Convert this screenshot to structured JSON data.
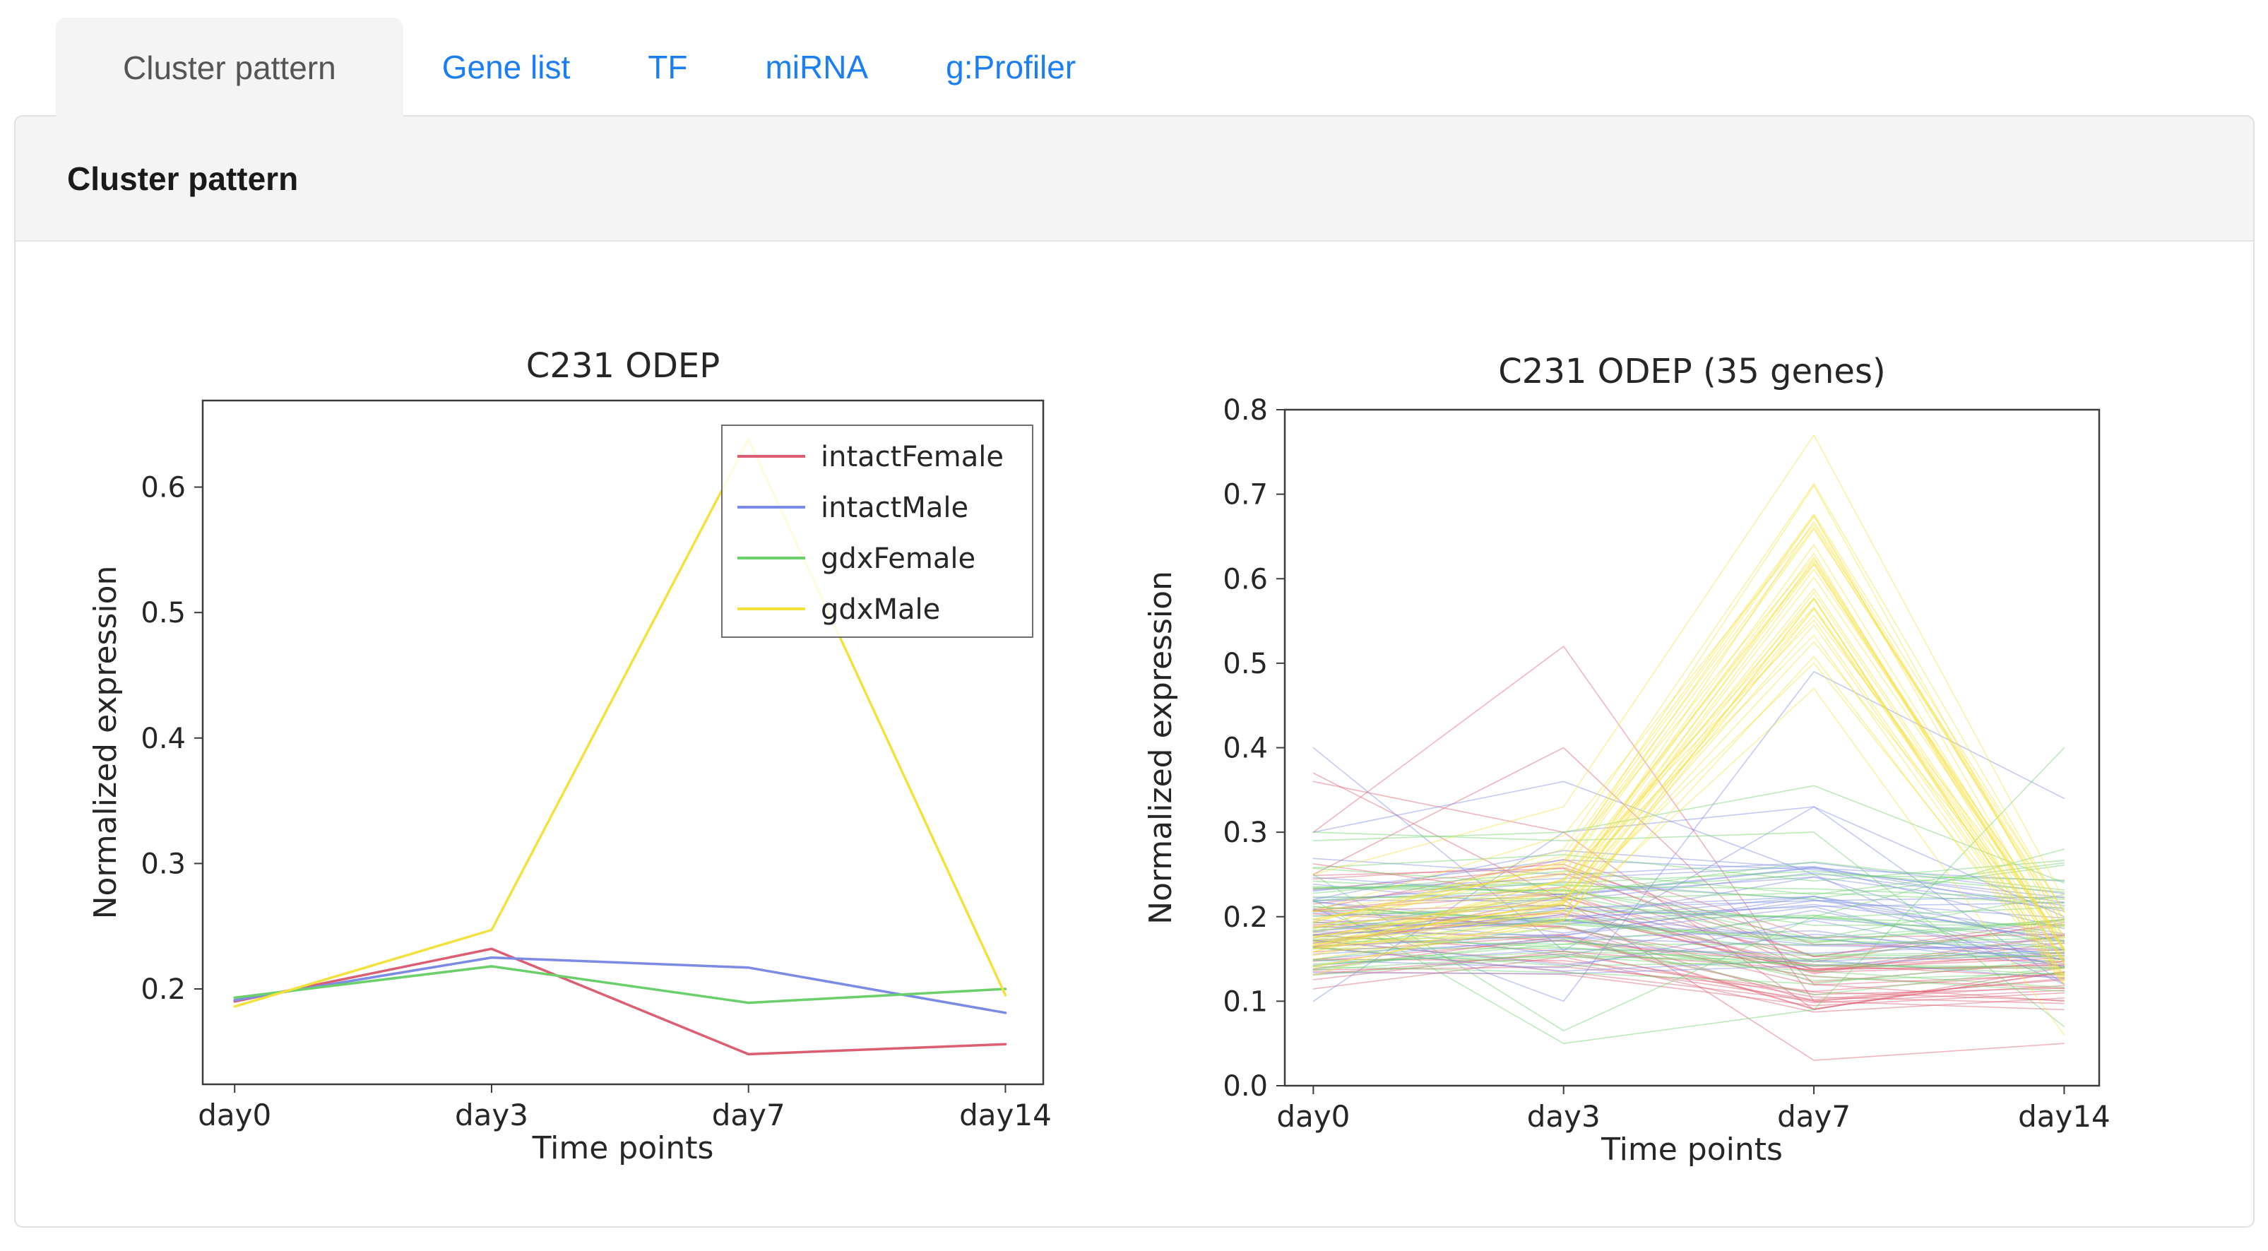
{
  "tabs": [
    {
      "label": "Cluster pattern",
      "active": true
    },
    {
      "label": "Gene list",
      "active": false
    },
    {
      "label": "TF",
      "active": false
    },
    {
      "label": "miRNA",
      "active": false
    },
    {
      "label": "g:Profiler",
      "active": false
    }
  ],
  "panel": {
    "header": "Cluster pattern"
  },
  "colors": {
    "tab_link": "#1b7ef2",
    "active_tab_text": "#555555",
    "panel_border": "#e0e0e0",
    "panel_header_bg": "#f4f4f4",
    "axis": "#3c3c3c",
    "chart_text": "#262626",
    "series_red": "#dd5e72",
    "series_blue": "#7b8ae4",
    "series_green": "#6bd06b",
    "series_yellow": "#f3e13d"
  },
  "chart_data": [
    {
      "type": "line",
      "title": "C231 ODEP",
      "xlabel": "Time points",
      "ylabel": "Normalized expression",
      "categories": [
        "day0",
        "day3",
        "day7",
        "day14"
      ],
      "ylim": [
        0.124,
        0.669
      ],
      "yticks": {
        "values": [
          0.2,
          0.3,
          0.4,
          0.5,
          0.6
        ],
        "labels": [
          "0.2",
          "0.3",
          "0.4",
          "0.5",
          "0.6"
        ]
      },
      "grid": false,
      "legend_position": "upper right",
      "line_width": 3.5,
      "series": [
        {
          "name": "intactFemale",
          "color_key": "series_red",
          "values": [
            0.19,
            0.232,
            0.148,
            0.156
          ]
        },
        {
          "name": "intactMale",
          "color_key": "series_blue",
          "values": [
            0.191,
            0.225,
            0.217,
            0.181
          ]
        },
        {
          "name": "gdxFemale",
          "color_key": "series_green",
          "values": [
            0.193,
            0.218,
            0.189,
            0.2
          ]
        },
        {
          "name": "gdxMale",
          "color_key": "series_yellow",
          "values": [
            0.186,
            0.247,
            0.638,
            0.195
          ]
        }
      ]
    },
    {
      "type": "line-spaghetti",
      "title": "C231 ODEP (35 genes)",
      "xlabel": "Time points",
      "ylabel": "Normalized expression",
      "categories": [
        "day0",
        "day3",
        "day7",
        "day14"
      ],
      "ylim": [
        0.0,
        0.8
      ],
      "yticks": {
        "values": [
          0.0,
          0.1,
          0.2,
          0.3,
          0.4,
          0.5,
          0.6,
          0.7,
          0.8
        ],
        "labels": [
          "0.0",
          "0.1",
          "0.2",
          "0.3",
          "0.4",
          "0.5",
          "0.6",
          "0.7",
          "0.8"
        ]
      },
      "grid": false,
      "alpha": 0.45,
      "line_width": 1.6,
      "seed": 11,
      "genes_per_group": 35,
      "groups": [
        {
          "name": "intactFemale",
          "color_key": "series_red",
          "n": 35,
          "mean": [
            0.19,
            0.195,
            0.13,
            0.15
          ],
          "spread": [
            0.055,
            0.07,
            0.045,
            0.05
          ],
          "clamp": [
            0.03,
            0.44
          ]
        },
        {
          "name": "intactMale",
          "color_key": "series_blue",
          "n": 35,
          "mean": [
            0.195,
            0.205,
            0.215,
            0.18
          ],
          "spread": [
            0.055,
            0.06,
            0.06,
            0.06
          ],
          "clamp": [
            0.05,
            0.42
          ]
        },
        {
          "name": "gdxFemale",
          "color_key": "series_green",
          "n": 35,
          "mean": [
            0.2,
            0.21,
            0.195,
            0.2
          ],
          "spread": [
            0.05,
            0.055,
            0.065,
            0.06
          ],
          "clamp": [
            0.04,
            0.4
          ]
        },
        {
          "name": "gdxMale",
          "color_key": "series_yellow",
          "n": 35,
          "mean": [
            0.18,
            0.24,
            0.62,
            0.17
          ],
          "spread": [
            0.035,
            0.045,
            0.1,
            0.05
          ],
          "clamp": [
            0.05,
            0.78
          ],
          "peak": {
            "index": 2,
            "center": 0.62,
            "bias": 0.1,
            "noise": 0.1,
            "min": 0.45,
            "max": 0.77
          }
        }
      ],
      "outliers": [
        {
          "group": "intactFemale",
          "values": [
            0.3,
            0.52,
            0.1,
            0.09
          ]
        },
        {
          "group": "intactFemale",
          "values": [
            0.37,
            0.22,
            0.03,
            0.05
          ]
        },
        {
          "group": "intactFemale",
          "values": [
            0.25,
            0.4,
            0.12,
            0.1
          ]
        },
        {
          "group": "intactFemale",
          "values": [
            0.36,
            0.3,
            0.09,
            0.14
          ]
        },
        {
          "group": "intactMale",
          "values": [
            0.4,
            0.16,
            0.33,
            0.12
          ]
        },
        {
          "group": "intactMale",
          "values": [
            0.21,
            0.1,
            0.49,
            0.34
          ]
        },
        {
          "group": "intactMale",
          "values": [
            0.3,
            0.36,
            0.25,
            0.12
          ]
        },
        {
          "group": "intactMale",
          "values": [
            0.1,
            0.3,
            0.33,
            0.2
          ]
        },
        {
          "group": "gdxFemale",
          "values": [
            0.29,
            0.3,
            0.355,
            0.24
          ]
        },
        {
          "group": "gdxFemale",
          "values": [
            0.22,
            0.05,
            0.09,
            0.4
          ]
        },
        {
          "group": "gdxFemale",
          "values": [
            0.3,
            0.29,
            0.3,
            0.07
          ]
        },
        {
          "group": "gdxFemale",
          "values": [
            0.25,
            0.065,
            0.2,
            0.28
          ]
        },
        {
          "group": "gdxMale",
          "values": [
            0.25,
            0.33,
            0.77,
            0.22
          ]
        },
        {
          "group": "gdxMale",
          "values": [
            0.14,
            0.2,
            0.47,
            0.06
          ]
        }
      ]
    }
  ]
}
